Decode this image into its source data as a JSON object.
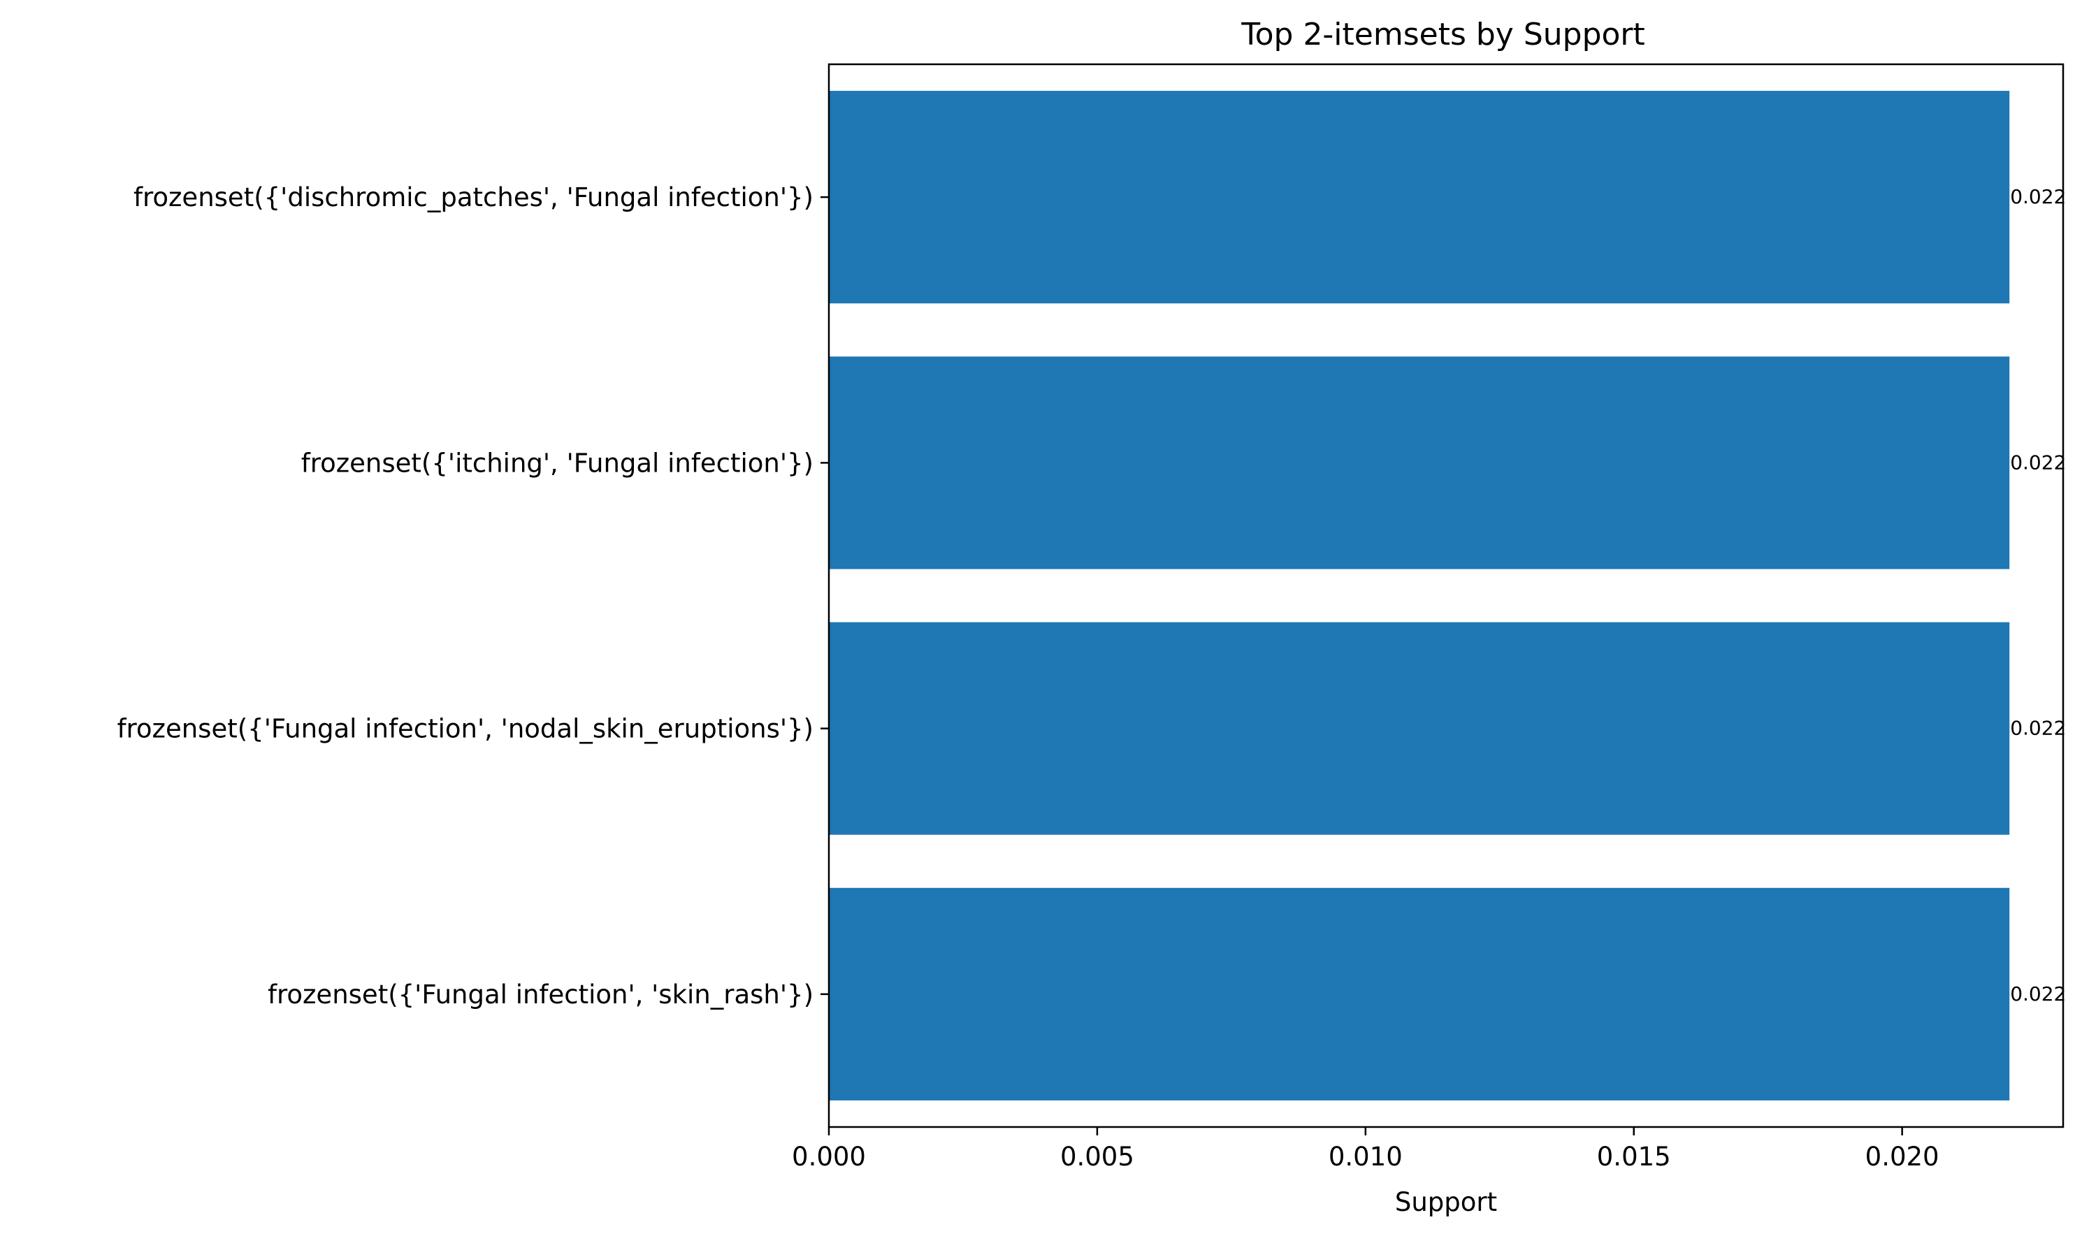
{
  "chart_data": {
    "type": "bar",
    "orientation": "horizontal",
    "title": "Top 2-itemsets by Support",
    "xlabel": "Support",
    "ylabel": "",
    "xlim": [
      0,
      0.023
    ],
    "xticks": [
      0.0,
      0.005,
      0.01,
      0.015,
      0.02
    ],
    "xtick_labels": [
      "0.000",
      "0.005",
      "0.010",
      "0.015",
      "0.020"
    ],
    "categories": [
      "frozenset({'dischromic_patches', 'Fungal infection'})",
      "frozenset({'itching', 'Fungal infection'})",
      "frozenset({'Fungal infection', 'nodal_skin_eruptions'})",
      "frozenset({'Fungal infection', 'skin_rash'})"
    ],
    "values": [
      0.022,
      0.022,
      0.022,
      0.022
    ],
    "data_labels": [
      "0.022",
      "0.022",
      "0.022",
      "0.022"
    ],
    "bar_color": "#1f77b4",
    "grid": false,
    "legend": "none"
  }
}
